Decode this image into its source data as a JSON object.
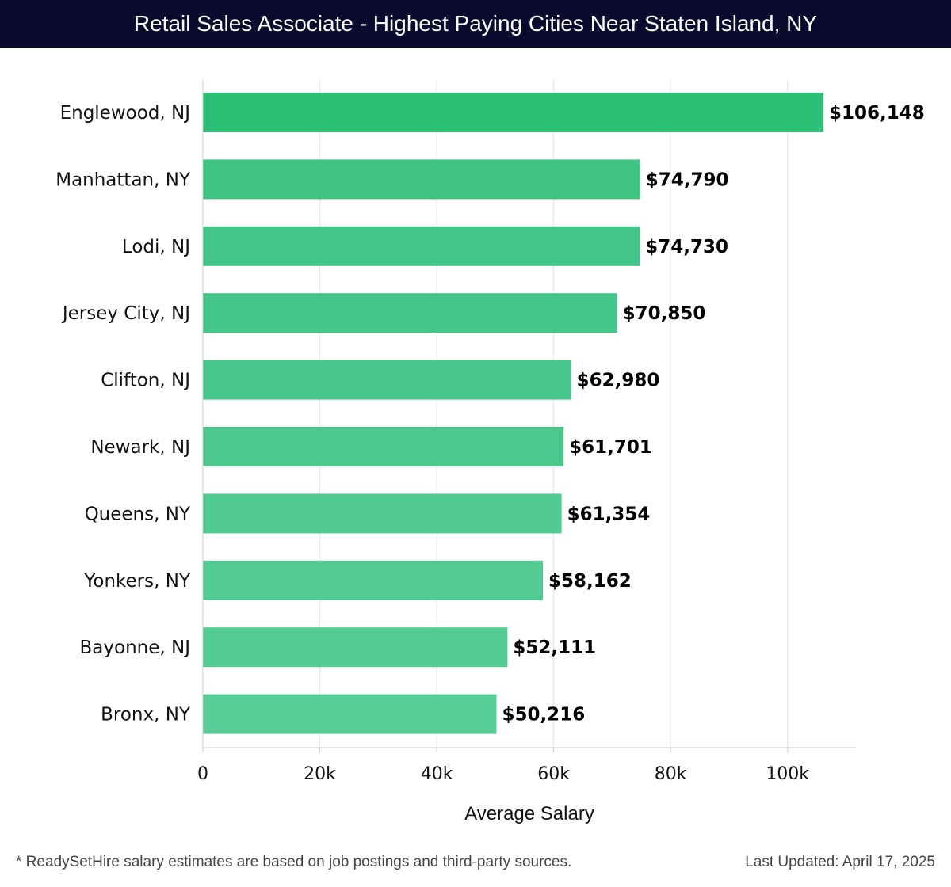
{
  "header": {
    "title": "Retail Sales Associate - Highest Paying Cities Near Staten Island, NY"
  },
  "footer": {
    "note": "* ReadySetHire salary estimates are based on job postings and third-party sources.",
    "updated": "Last Updated: April 17, 2025"
  },
  "chart_data": {
    "type": "bar",
    "orientation": "horizontal",
    "title": "Retail Sales Associate - Highest Paying Cities Near Staten Island, NY",
    "xlabel": "Average Salary",
    "ylabel": "",
    "categories": [
      "Englewood, NJ",
      "Manhattan, NY",
      "Lodi, NJ",
      "Jersey City, NJ",
      "Clifton, NJ",
      "Newark, NJ",
      "Queens, NY",
      "Yonkers, NY",
      "Bayonne, NJ",
      "Bronx, NY"
    ],
    "values": [
      106148,
      74790,
      74730,
      70850,
      62980,
      61701,
      61354,
      58162,
      52111,
      50216
    ],
    "value_labels": [
      "$106,148",
      "$74,790",
      "$74,730",
      "$70,850",
      "$62,980",
      "$61,701",
      "$61,354",
      "$58,162",
      "$52,111",
      "$50,216"
    ],
    "xlim": [
      0,
      111700
    ],
    "xticks": [
      0,
      20000,
      40000,
      60000,
      80000,
      100000
    ],
    "xtick_labels": [
      "0",
      "20k",
      "40k",
      "60k",
      "80k",
      "100k"
    ],
    "grid": true,
    "colors": {
      "top_bar": "#2bbf76",
      "bar_start": "#3fc484",
      "bar_end": "#58cc96",
      "grid": "#e3e3e3",
      "axis": "#cccccc",
      "value_text": "#000000",
      "label_text": "#111111"
    }
  }
}
